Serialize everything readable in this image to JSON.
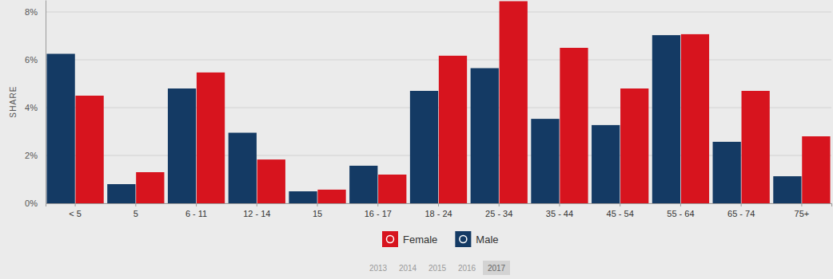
{
  "chart_data": {
    "type": "bar",
    "y_label": "SHARE",
    "categories": [
      "< 5",
      "5",
      "6 - 11",
      "12 - 14",
      "15",
      "16 - 17",
      "18 - 24",
      "25 - 34",
      "35 - 44",
      "45 - 54",
      "55 - 64",
      "65 - 74",
      "75+"
    ],
    "series": [
      {
        "name": "Male",
        "color": "#143a64",
        "values": [
          6.25,
          0.8,
          4.8,
          2.95,
          0.5,
          1.57,
          4.7,
          5.65,
          3.53,
          3.27,
          7.03,
          2.57,
          1.13
        ]
      },
      {
        "name": "Female",
        "color": "#d7141e",
        "values": [
          4.5,
          1.3,
          5.47,
          1.83,
          0.57,
          1.2,
          6.17,
          8.45,
          6.5,
          4.8,
          7.07,
          4.7,
          2.8
        ]
      }
    ],
    "ylim": [
      0,
      8.5
    ],
    "yticks": [
      {
        "value": 0,
        "label": "0%"
      },
      {
        "value": 2,
        "label": "2%"
      },
      {
        "value": 4,
        "label": "4%"
      },
      {
        "value": 6,
        "label": "6%"
      },
      {
        "value": 8,
        "label": "8%"
      }
    ],
    "grid": true,
    "legend": "bottom",
    "annotations": [
      "2013",
      "2014",
      "2015",
      "2016",
      "2017"
    ]
  }
}
